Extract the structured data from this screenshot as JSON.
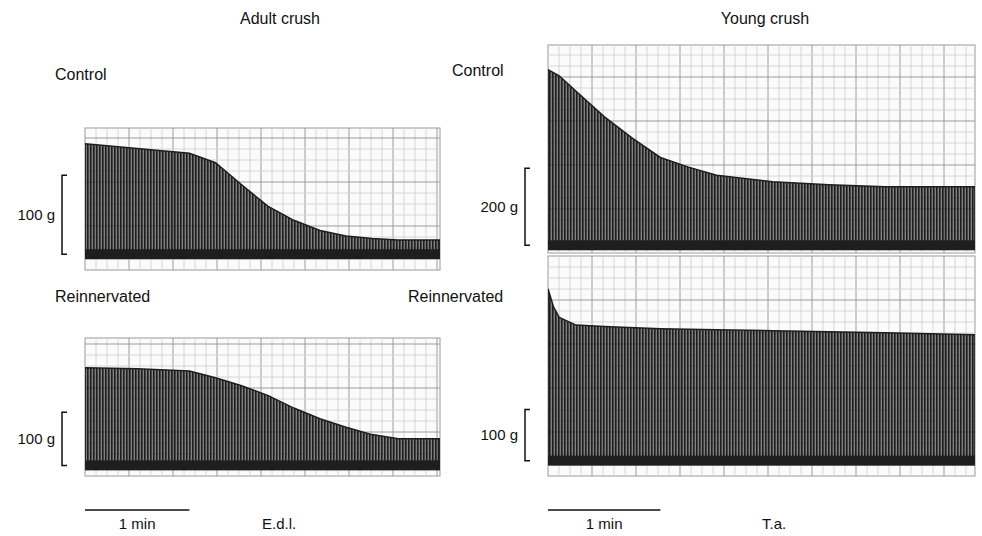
{
  "chart_data": [
    {
      "type": "area",
      "title": "Control",
      "color": "#1e1e1e",
      "tick_labels": false,
      "x": [
        0,
        0.5,
        1,
        1.25,
        1.5,
        1.75,
        2,
        2.25,
        2.5,
        2.75,
        3,
        3.4
      ],
      "values": [
        140,
        134,
        128,
        116,
        88,
        61,
        43,
        30,
        23,
        20,
        18,
        18
      ],
      "xlim": [
        0,
        3.4
      ],
      "ylim": [
        -20,
        160
      ],
      "scale_bar": {
        "value": 100,
        "label": "100 g"
      }
    },
    {
      "type": "area",
      "title": "Reinnervated",
      "color": "#1e1e1e",
      "tick_labels": false,
      "x": [
        0,
        0.5,
        1,
        1.25,
        1.5,
        1.75,
        2,
        2.25,
        2.5,
        2.75,
        3,
        3.4
      ],
      "values": [
        184,
        182,
        178,
        165,
        150,
        132,
        108,
        88,
        72,
        58,
        50,
        50
      ],
      "xlim": [
        0,
        3.4
      ],
      "ylim": [
        -20,
        240
      ],
      "scale_bar": {
        "value": 100,
        "label": "100 g"
      }
    },
    {
      "type": "area",
      "title": "Control",
      "color": "#1e1e1e",
      "tick_labels": false,
      "x": [
        0,
        0.1,
        0.25,
        0.5,
        0.75,
        1,
        1.25,
        1.5,
        2,
        2.5,
        3,
        3.8
      ],
      "values": [
        456,
        440,
        400,
        334,
        278,
        228,
        203,
        182,
        165,
        157,
        152,
        152
      ],
      "xlim": [
        0,
        3.8
      ],
      "ylim": [
        -20,
        520
      ],
      "scale_bar": {
        "value": 200,
        "label": "200 g"
      }
    },
    {
      "type": "area",
      "title": "Reinnervated",
      "color": "#1e1e1e",
      "tick_labels": false,
      "x": [
        0,
        0.05,
        0.1,
        0.25,
        0.5,
        1,
        1.5,
        2,
        2.5,
        3,
        3.8
      ],
      "values": [
        336,
        300,
        280,
        265,
        262,
        258,
        256,
        254,
        252,
        250,
        246
      ],
      "xlim": [
        0,
        3.8
      ],
      "ylim": [
        -30,
        400
      ],
      "scale_bar": {
        "value": 100,
        "label": "100 g"
      }
    }
  ],
  "groups": [
    {
      "title": "Adult crush",
      "muscle": "E.d.l.",
      "time_bar": {
        "value": 1,
        "label": "1 min"
      }
    },
    {
      "title": "Young crush",
      "muscle": "T.a.",
      "time_bar": {
        "value": 1,
        "label": "1 min"
      }
    }
  ]
}
